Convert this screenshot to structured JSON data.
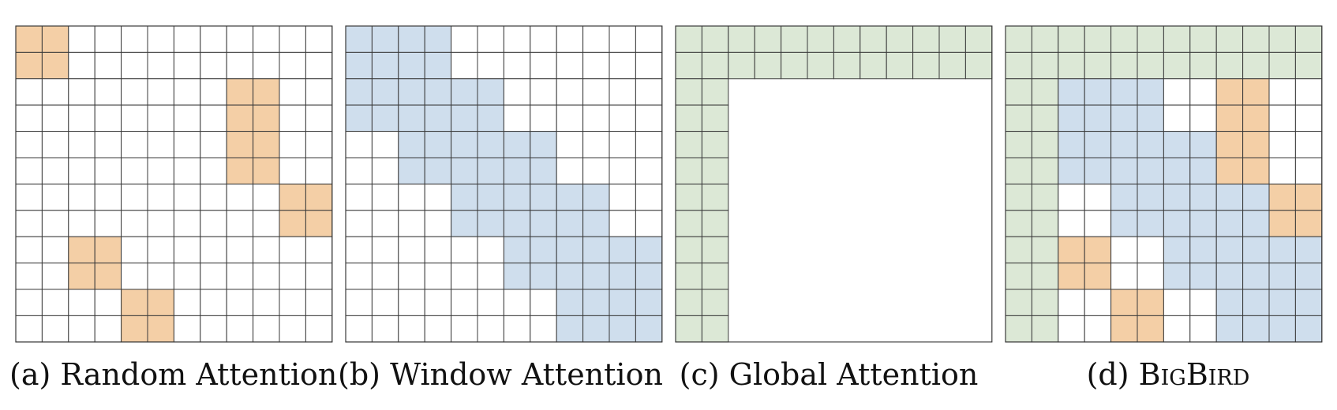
{
  "colors": {
    "random": "#f4cfa6",
    "window": "#cfdeed",
    "global": "#dce8d6",
    "empty": "#ffffff",
    "grid_line": "#3a3a3a"
  },
  "grid_size": 12,
  "panels": [
    {
      "id": "random",
      "caption_prefix": "(a) ",
      "caption": "Random Attention",
      "small_caps": false,
      "cells": [
        [
          0,
          0
        ],
        [
          0,
          1
        ],
        [
          1,
          0
        ],
        [
          1,
          1
        ],
        [
          2,
          8
        ],
        [
          2,
          9
        ],
        [
          3,
          8
        ],
        [
          3,
          9
        ],
        [
          4,
          8
        ],
        [
          4,
          9
        ],
        [
          5,
          8
        ],
        [
          5,
          9
        ],
        [
          6,
          10
        ],
        [
          6,
          11
        ],
        [
          7,
          10
        ],
        [
          7,
          11
        ],
        [
          8,
          2
        ],
        [
          8,
          3
        ],
        [
          9,
          2
        ],
        [
          9,
          3
        ],
        [
          10,
          4
        ],
        [
          10,
          5
        ],
        [
          11,
          4
        ],
        [
          11,
          5
        ]
      ]
    },
    {
      "id": "window",
      "caption_prefix": "(b) ",
      "caption": "Window Attention",
      "small_caps": false,
      "band": {
        "block": 2,
        "radius": 1
      }
    },
    {
      "id": "global",
      "caption_prefix": "(c) ",
      "caption": "Global Attention",
      "small_caps": false,
      "global_count": 2
    },
    {
      "id": "bigbird",
      "caption_prefix": "(d) ",
      "caption": "BigBird",
      "small_caps": true,
      "band": {
        "block": 2,
        "radius": 1
      },
      "global_count": 2,
      "random_cells": [
        [
          2,
          8
        ],
        [
          2,
          9
        ],
        [
          3,
          8
        ],
        [
          3,
          9
        ],
        [
          4,
          8
        ],
        [
          4,
          9
        ],
        [
          5,
          8
        ],
        [
          5,
          9
        ],
        [
          6,
          10
        ],
        [
          6,
          11
        ],
        [
          7,
          10
        ],
        [
          7,
          11
        ],
        [
          8,
          2
        ],
        [
          8,
          3
        ],
        [
          9,
          2
        ],
        [
          9,
          3
        ],
        [
          10,
          4
        ],
        [
          10,
          5
        ],
        [
          11,
          4
        ],
        [
          11,
          5
        ]
      ]
    }
  ]
}
